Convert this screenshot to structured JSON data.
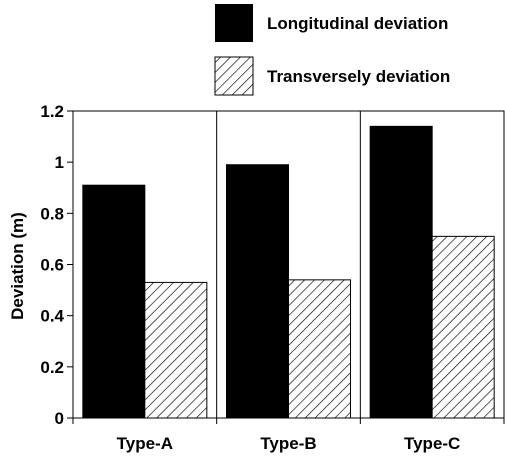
{
  "chart_data": {
    "type": "bar",
    "categories": [
      "Type-A",
      "Type-B",
      "Type-C"
    ],
    "series": [
      {
        "name": "Longitudinal deviation",
        "values": [
          0.91,
          0.99,
          1.14
        ],
        "fill": "solid",
        "color": "#000000"
      },
      {
        "name": "Transversely deviation",
        "values": [
          0.53,
          0.54,
          0.71
        ],
        "fill": "hatched",
        "color": "#000000"
      }
    ],
    "title": "",
    "xlabel": "",
    "ylabel": "Deviation (m)",
    "ylim": [
      0,
      1.2
    ],
    "yticks": [
      "0",
      "0.2",
      "0.4",
      "0.6",
      "0.8",
      "1",
      "1.2"
    ],
    "ytick_values": [
      0,
      0.2,
      0.4,
      0.6,
      0.8,
      1.0,
      1.2
    ],
    "grid": "vertical separators between categories",
    "legend_position": "top-center"
  }
}
